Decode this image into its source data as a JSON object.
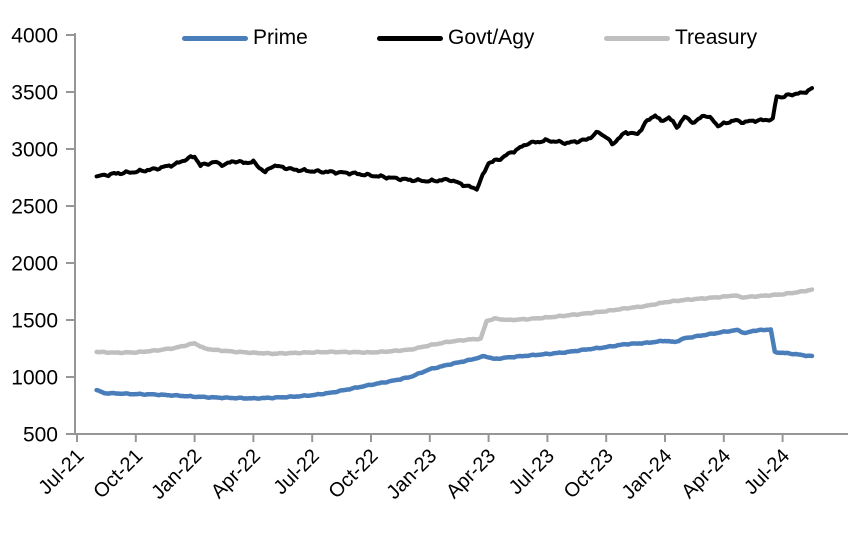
{
  "chart_data": {
    "type": "line",
    "title": "",
    "x_axis": {
      "tick_labels": [
        "Jul-21",
        "Oct-21",
        "Jan-22",
        "Apr-22",
        "Jul-22",
        "Oct-22",
        "Jan-23",
        "Apr-23",
        "Jul-23",
        "Oct-23",
        "Jan-24",
        "Apr-24",
        "Jul-24"
      ],
      "x_unit": "months_after_2021-08",
      "data_range_months": [
        0,
        36.5
      ]
    },
    "y_axis": {
      "min": 500,
      "max": 4000,
      "tick_step": 500,
      "tick_labels": [
        "500",
        "1000",
        "1500",
        "2000",
        "2500",
        "3000",
        "3500",
        "4000"
      ]
    },
    "legend": {
      "position": "top",
      "entries": [
        {
          "label": "Prime",
          "color": "#4a7ebb"
        },
        {
          "label": "Govt/Agy",
          "color": "#000000"
        },
        {
          "label": "Treasury",
          "color": "#bfbfbf"
        }
      ]
    },
    "series": [
      {
        "name": "Prime",
        "color": "#4a7ebb",
        "points": [
          [
            0,
            885
          ],
          [
            0.4,
            858
          ],
          [
            1,
            856
          ],
          [
            2,
            850
          ],
          [
            3,
            846
          ],
          [
            4,
            838
          ],
          [
            5,
            828
          ],
          [
            6,
            820
          ],
          [
            7,
            816
          ],
          [
            8,
            812
          ],
          [
            9,
            818
          ],
          [
            10,
            827
          ],
          [
            11,
            840
          ],
          [
            12,
            863
          ],
          [
            13,
            898
          ],
          [
            14,
            932
          ],
          [
            15,
            963
          ],
          [
            16,
            1000
          ],
          [
            17,
            1068
          ],
          [
            18,
            1110
          ],
          [
            19,
            1148
          ],
          [
            19.8,
            1183
          ],
          [
            20.3,
            1158
          ],
          [
            21,
            1172
          ],
          [
            22,
            1188
          ],
          [
            23,
            1202
          ],
          [
            24,
            1218
          ],
          [
            25,
            1242
          ],
          [
            26,
            1262
          ],
          [
            27,
            1288
          ],
          [
            28,
            1298
          ],
          [
            29,
            1318
          ],
          [
            29.5,
            1306
          ],
          [
            30,
            1340
          ],
          [
            31,
            1368
          ],
          [
            32,
            1396
          ],
          [
            32.7,
            1412
          ],
          [
            33.1,
            1383
          ],
          [
            33.5,
            1406
          ],
          [
            34,
            1412
          ],
          [
            34.4,
            1418
          ],
          [
            34.6,
            1218
          ],
          [
            35,
            1212
          ],
          [
            35.6,
            1202
          ],
          [
            36,
            1192
          ],
          [
            36.5,
            1182
          ]
        ]
      },
      {
        "name": "Govt/Agy",
        "color": "#000000",
        "points": [
          [
            0,
            2760
          ],
          [
            1,
            2785
          ],
          [
            2,
            2800
          ],
          [
            3,
            2825
          ],
          [
            4,
            2865
          ],
          [
            4.7,
            2920
          ],
          [
            5,
            2935
          ],
          [
            5.3,
            2855
          ],
          [
            6,
            2885
          ],
          [
            6.5,
            2860
          ],
          [
            7,
            2895
          ],
          [
            7.5,
            2880
          ],
          [
            8,
            2885
          ],
          [
            8.6,
            2795
          ],
          [
            9,
            2855
          ],
          [
            9.5,
            2840
          ],
          [
            10,
            2820
          ],
          [
            11,
            2805
          ],
          [
            12,
            2798
          ],
          [
            13,
            2788
          ],
          [
            14,
            2768
          ],
          [
            15,
            2748
          ],
          [
            16,
            2728
          ],
          [
            17,
            2718
          ],
          [
            18,
            2732
          ],
          [
            19,
            2668
          ],
          [
            19.4,
            2652
          ],
          [
            20,
            2880
          ],
          [
            20.5,
            2905
          ],
          [
            21,
            2955
          ],
          [
            21.5,
            3000
          ],
          [
            22,
            3050
          ],
          [
            23,
            3075
          ],
          [
            24,
            3052
          ],
          [
            25,
            3082
          ],
          [
            25.6,
            3148
          ],
          [
            26,
            3105
          ],
          [
            26.3,
            3042
          ],
          [
            27,
            3148
          ],
          [
            27.6,
            3128
          ],
          [
            28,
            3230
          ],
          [
            28.5,
            3300
          ],
          [
            28.8,
            3240
          ],
          [
            29.2,
            3280
          ],
          [
            29.6,
            3190
          ],
          [
            30,
            3280
          ],
          [
            30.5,
            3230
          ],
          [
            31,
            3300
          ],
          [
            31.4,
            3260
          ],
          [
            31.7,
            3205
          ],
          [
            32,
            3220
          ],
          [
            32.5,
            3252
          ],
          [
            33,
            3235
          ],
          [
            33.6,
            3250
          ],
          [
            34,
            3252
          ],
          [
            34.5,
            3262
          ],
          [
            34.7,
            3465
          ],
          [
            35,
            3455
          ],
          [
            35.4,
            3478
          ],
          [
            36,
            3490
          ],
          [
            36.5,
            3528
          ]
        ]
      },
      {
        "name": "Treasury",
        "color": "#bfbfbf",
        "points": [
          [
            0,
            1220
          ],
          [
            1,
            1213
          ],
          [
            2,
            1216
          ],
          [
            3,
            1232
          ],
          [
            4,
            1255
          ],
          [
            5,
            1296
          ],
          [
            5.5,
            1250
          ],
          [
            6,
            1238
          ],
          [
            7,
            1222
          ],
          [
            8,
            1212
          ],
          [
            9,
            1205
          ],
          [
            10,
            1210
          ],
          [
            11,
            1216
          ],
          [
            12,
            1220
          ],
          [
            13,
            1218
          ],
          [
            14,
            1215
          ],
          [
            15,
            1226
          ],
          [
            16,
            1240
          ],
          [
            17,
            1278
          ],
          [
            18,
            1310
          ],
          [
            19,
            1328
          ],
          [
            19.6,
            1336
          ],
          [
            19.9,
            1492
          ],
          [
            20.3,
            1512
          ],
          [
            21,
            1500
          ],
          [
            22,
            1508
          ],
          [
            23,
            1522
          ],
          [
            24,
            1540
          ],
          [
            25,
            1558
          ],
          [
            26,
            1578
          ],
          [
            27,
            1602
          ],
          [
            28,
            1622
          ],
          [
            29,
            1656
          ],
          [
            30,
            1676
          ],
          [
            31,
            1690
          ],
          [
            32,
            1704
          ],
          [
            32.5,
            1716
          ],
          [
            33,
            1698
          ],
          [
            33.5,
            1706
          ],
          [
            34,
            1712
          ],
          [
            35,
            1726
          ],
          [
            36,
            1750
          ],
          [
            36.5,
            1766
          ]
        ]
      }
    ],
    "grid": "off"
  },
  "colors": {
    "axis": "#969696",
    "text": "#000000",
    "background": "#ffffff"
  }
}
